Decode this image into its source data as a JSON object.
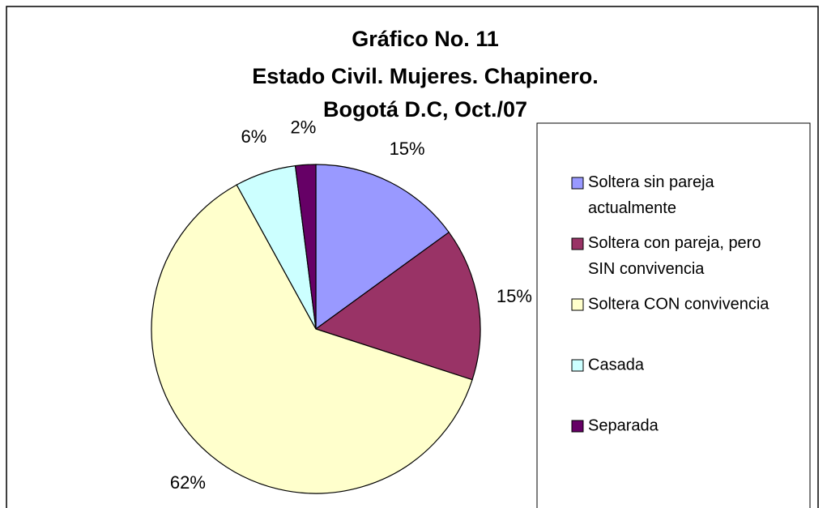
{
  "chart_data": {
    "type": "pie",
    "title": [
      "Gráfico No. 11",
      "Estado Civil. Mujeres. Chapinero.",
      "Bogotá D.C, Oct./07"
    ],
    "categories": [
      "Soltera sin pareja actualmente",
      "Soltera con pareja, pero SIN convivencia",
      "Soltera CON convivencia",
      "Casada",
      "Separada"
    ],
    "values": [
      15,
      15,
      62,
      6,
      2
    ],
    "value_labels": [
      "15%",
      "15%",
      "62%",
      "6%",
      "2%"
    ],
    "colors": [
      "#9999ff",
      "#993366",
      "#ffffcc",
      "#ccffff",
      "#660066"
    ],
    "legend": "right"
  }
}
